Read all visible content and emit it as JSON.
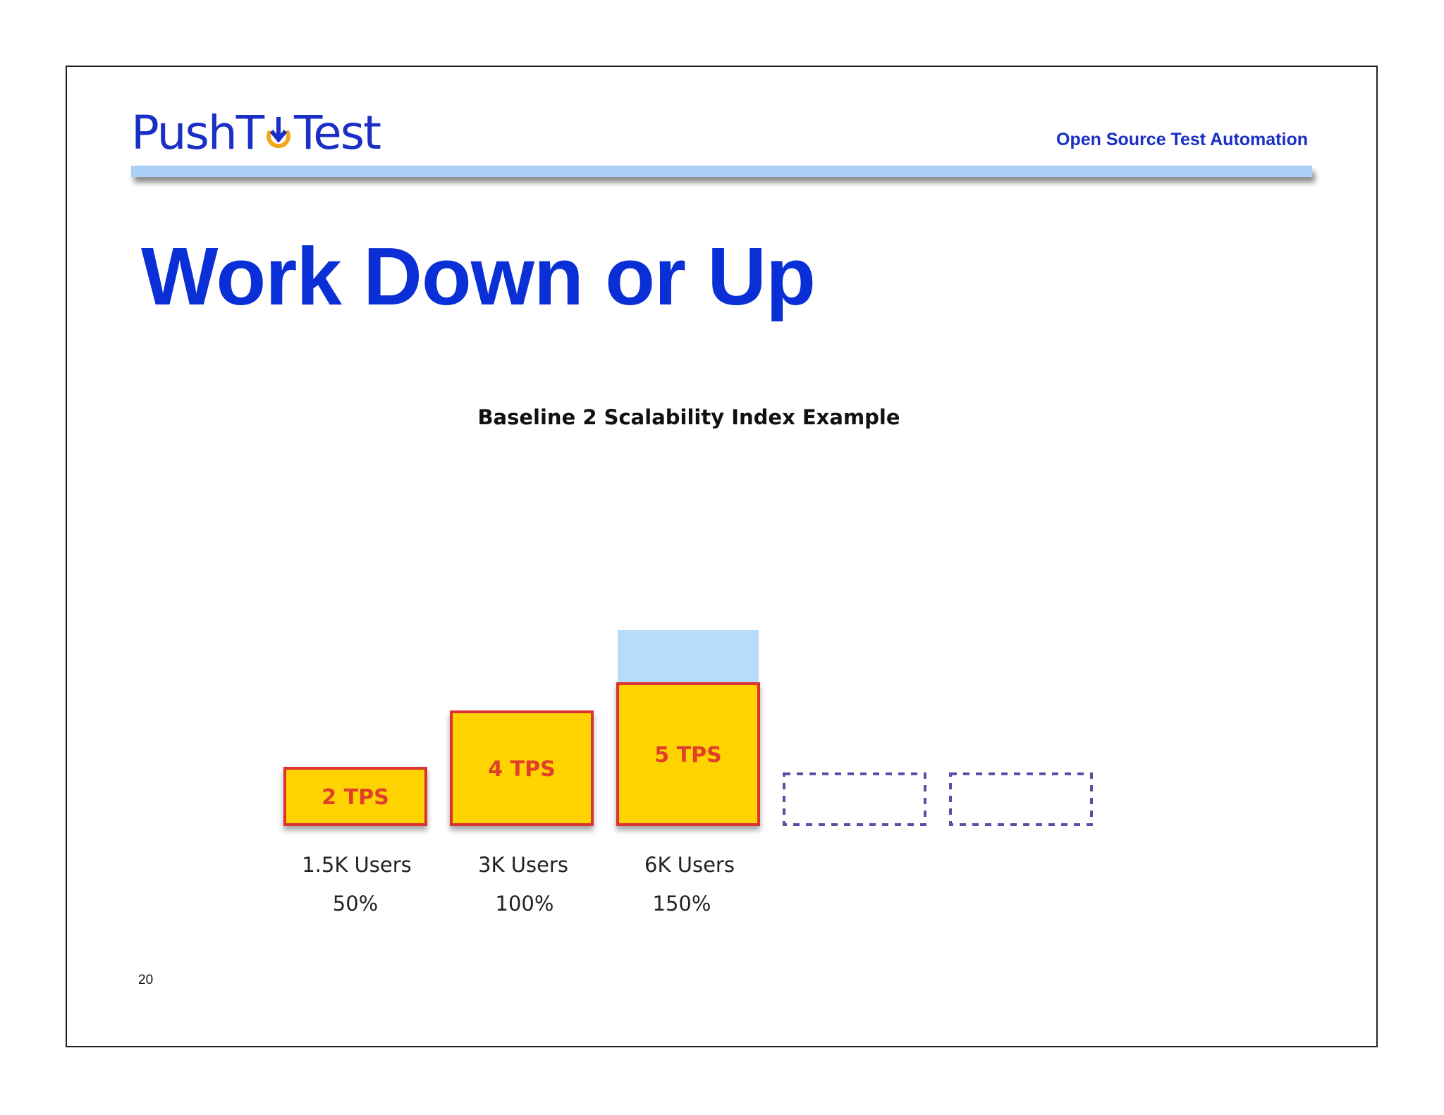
{
  "header": {
    "logo_push": "Push",
    "logo_t": "T",
    "logo_test": "Test",
    "tagline": "Open Source Test Automation"
  },
  "slide": {
    "title": "Work Down or Up",
    "page_number": "20"
  },
  "colors": {
    "title_blue": "#0a2fd6",
    "header_bar": "#a9cff7",
    "bar_fill": "#fed301",
    "bar_border": "#dd3333",
    "bar_label": "#e0402a",
    "capacity_fill": "#b7dcfb",
    "placeholder_border": "#5550a8"
  },
  "chart_data": {
    "type": "bar",
    "title": "Baseline 2 Scalability Index Example",
    "categories": [
      "1.5K Users",
      "3K Users",
      "6K Users",
      "",
      ""
    ],
    "percent_labels": [
      "50%",
      "100%",
      "150%",
      "",
      ""
    ],
    "series": [
      {
        "values": [
          2,
          4,
          5,
          null,
          null
        ],
        "labels": [
          "2 TPS",
          "4 TPS",
          "5 TPS",
          "",
          ""
        ]
      }
    ],
    "capacity_value": 6,
    "placeholders": [
      3,
      4
    ],
    "xlabel": "",
    "ylabel": "",
    "grid": false
  }
}
